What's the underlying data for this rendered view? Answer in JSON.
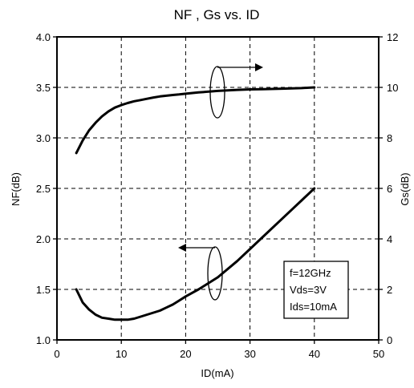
{
  "chart_data": {
    "type": "line",
    "title": "NF , Gs vs. ID",
    "xlabel": "ID(mA)",
    "ylabel_left": "NF(dB)",
    "ylabel_right": "Gs(dB)",
    "xlim": [
      0,
      50
    ],
    "ylim_left": [
      1.0,
      4.0
    ],
    "ylim_right": [
      0,
      12
    ],
    "x_ticks": [
      "0",
      "10",
      "20",
      "30",
      "40",
      "50"
    ],
    "y_left_ticks": [
      "1.0",
      "1.5",
      "2.0",
      "2.5",
      "3.0",
      "3.5",
      "4.0"
    ],
    "y_right_ticks": [
      "0",
      "2",
      "4",
      "6",
      "8",
      "10",
      "12"
    ],
    "grid": true,
    "series": [
      {
        "axis": "left",
        "x": [
          3,
          4,
          5,
          6,
          7,
          8,
          9,
          10,
          11,
          12,
          13,
          14,
          15,
          16,
          17,
          18,
          19,
          20,
          22,
          25,
          28,
          30,
          32,
          35,
          38,
          40
        ],
        "y": [
          1.5,
          1.37,
          1.3,
          1.25,
          1.22,
          1.21,
          1.2,
          1.2,
          1.2,
          1.21,
          1.23,
          1.25,
          1.27,
          1.29,
          1.32,
          1.35,
          1.39,
          1.43,
          1.5,
          1.62,
          1.78,
          1.9,
          2.02,
          2.2,
          2.38,
          2.5
        ]
      },
      {
        "axis": "right",
        "x": [
          3,
          4,
          5,
          6,
          7,
          8,
          9,
          10,
          11,
          12,
          13,
          14,
          15,
          16,
          17,
          18,
          19,
          20,
          22,
          25,
          28,
          30,
          32,
          35,
          38,
          40
        ],
        "y": [
          7.4,
          7.9,
          8.3,
          8.6,
          8.85,
          9.05,
          9.2,
          9.3,
          9.38,
          9.45,
          9.5,
          9.55,
          9.6,
          9.64,
          9.67,
          9.7,
          9.72,
          9.75,
          9.8,
          9.86,
          9.9,
          9.92,
          9.93,
          9.95,
          9.97,
          10.0
        ]
      }
    ],
    "annotations": [
      "f=12GHz",
      "Vds=3V",
      "Ids=10mA"
    ],
    "colors": {
      "line": "#000000",
      "grid": "#000000",
      "background": "#ffffff"
    }
  }
}
